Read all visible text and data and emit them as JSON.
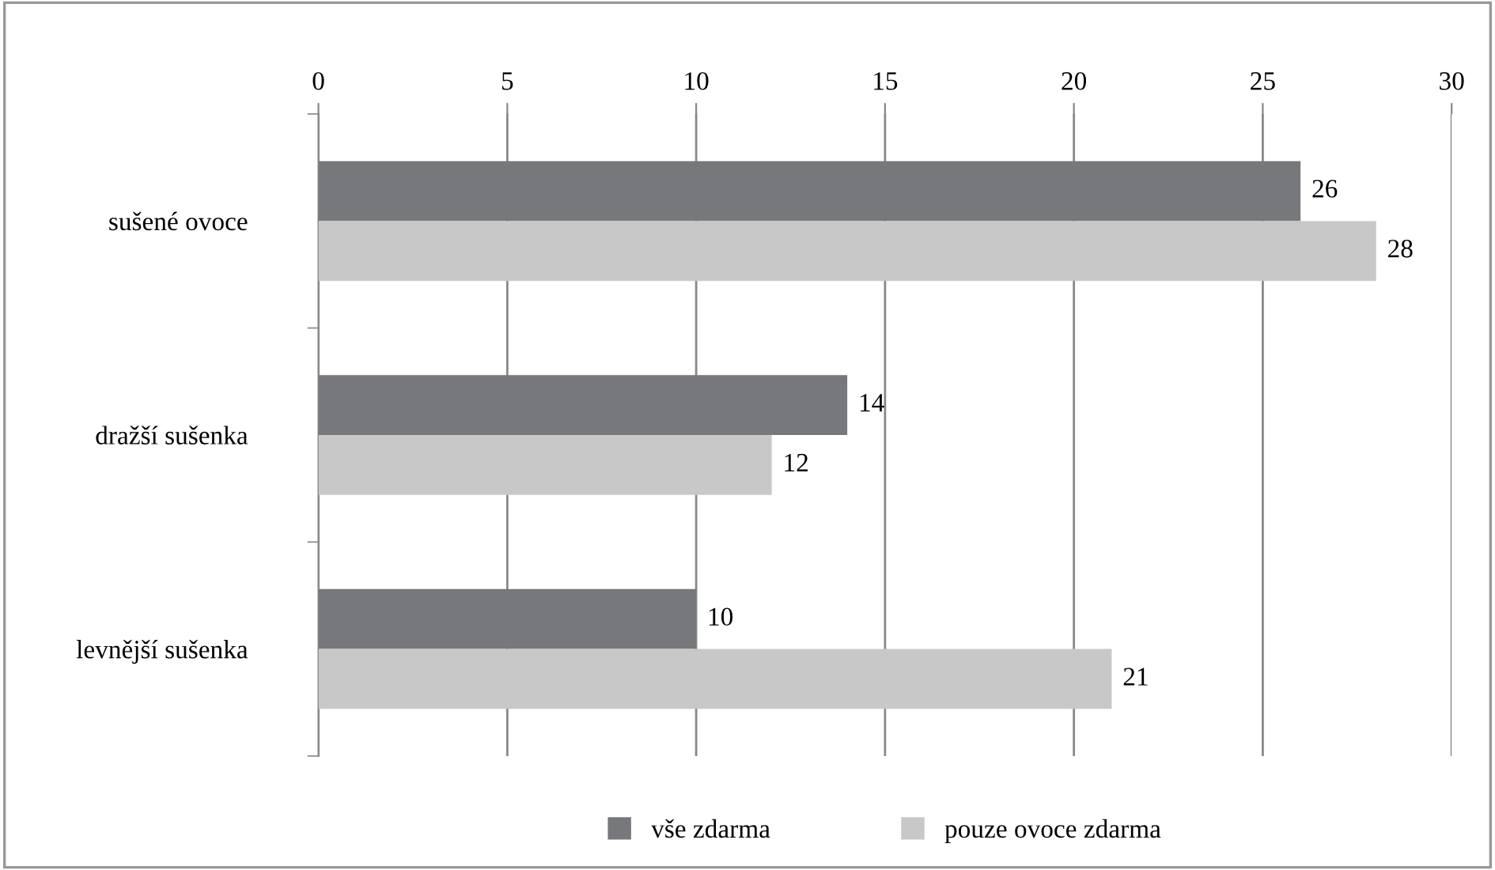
{
  "chart_data": {
    "type": "bar",
    "orientation": "horizontal",
    "categories": [
      "sušené ovoce",
      "dražší sušenka",
      "levnější sušenka"
    ],
    "series": [
      {
        "name": "vše zdarma",
        "color": "#77787b",
        "values": [
          26,
          14,
          10
        ]
      },
      {
        "name": "pouze ovoce zdarma",
        "color": "#c8c8c8",
        "values": [
          28,
          12,
          21
        ]
      }
    ],
    "xlim": [
      0,
      30
    ],
    "xticks": [
      0,
      5,
      10,
      15,
      20,
      25,
      30
    ],
    "grid": "x",
    "legend": "bottom",
    "data_labels": true
  }
}
